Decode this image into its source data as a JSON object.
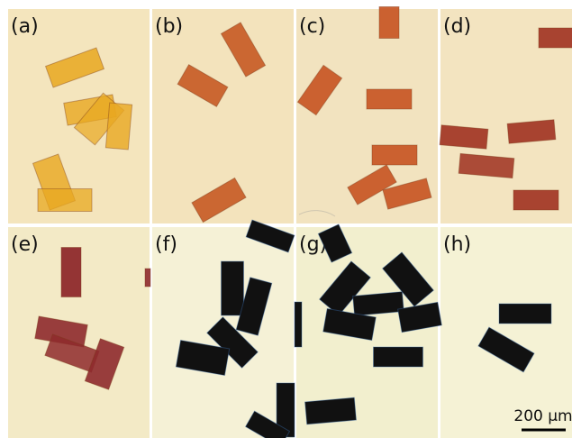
{
  "panels": [
    {
      "label": "(a)"
    },
    {
      "label": "(b)"
    },
    {
      "label": "(c)"
    },
    {
      "label": "(d)"
    },
    {
      "label": "(e)"
    },
    {
      "label": "(f)"
    },
    {
      "label": "(g)"
    },
    {
      "label": "(h)"
    }
  ],
  "scale_bar": {
    "label": "200 μm"
  }
}
